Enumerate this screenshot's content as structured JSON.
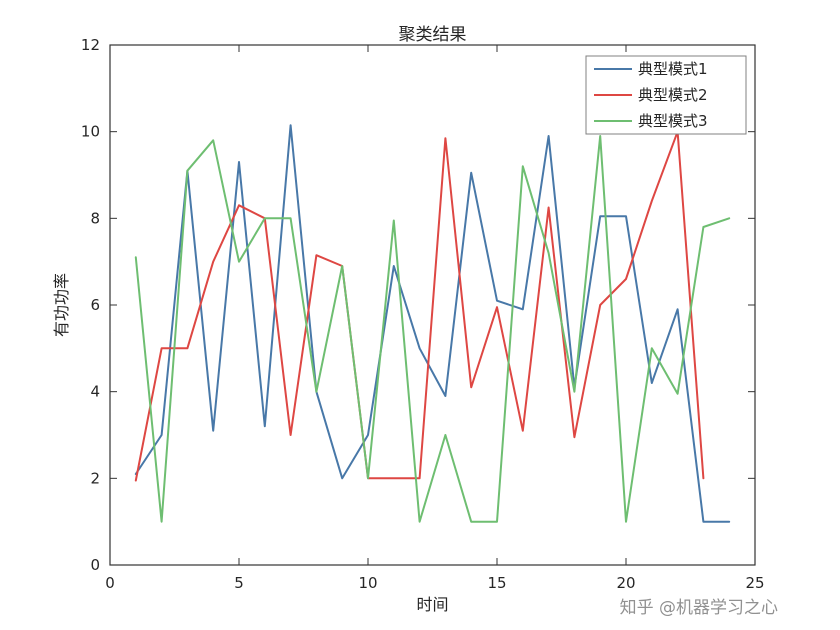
{
  "chart_data": {
    "type": "line",
    "title": "聚类结果",
    "xlabel": "时间",
    "ylabel": "有功功率",
    "xlim": [
      0,
      25
    ],
    "ylim": [
      0,
      12
    ],
    "xticks": [
      0,
      5,
      10,
      15,
      20,
      25
    ],
    "yticks": [
      0,
      2,
      4,
      6,
      8,
      10,
      12
    ],
    "grid": false,
    "legend_position": "top-right",
    "series": [
      {
        "name": "典型模式1",
        "color": "#4878A8",
        "x": [
          1,
          2,
          3,
          4,
          5,
          6,
          7,
          8,
          9,
          10,
          11,
          12,
          13,
          14,
          15,
          16,
          17,
          18,
          19,
          20,
          21,
          22,
          23,
          24
        ],
        "y": [
          2.1,
          3.0,
          9.1,
          3.1,
          9.3,
          3.2,
          10.15,
          4.0,
          2.0,
          3.0,
          6.9,
          5.0,
          3.9,
          9.05,
          6.1,
          5.9,
          9.9,
          4.1,
          8.05,
          8.05,
          4.2,
          5.9,
          1.0,
          1.0
        ]
      },
      {
        "name": "典型模式2",
        "color": "#DE4743",
        "x": [
          1,
          2,
          3,
          4,
          5,
          6,
          7,
          8,
          9,
          10,
          11,
          12,
          13,
          14,
          15,
          16,
          17,
          18,
          19,
          20,
          21,
          22,
          23
        ],
        "y": [
          1.95,
          5.0,
          5.0,
          7.0,
          8.3,
          8.0,
          3.0,
          7.15,
          6.9,
          2.0,
          2.0,
          2.0,
          9.85,
          4.1,
          5.95,
          3.1,
          8.25,
          2.95,
          6.0,
          6.6,
          8.4,
          10.0,
          2.0
        ]
      },
      {
        "name": "典型模式3",
        "color": "#6EBE71",
        "x": [
          1,
          2,
          3,
          4,
          5,
          6,
          7,
          8,
          9,
          10,
          11,
          12,
          13,
          14,
          15,
          16,
          17,
          18,
          19,
          20,
          21,
          22,
          23,
          24
        ],
        "y": [
          7.1,
          1.0,
          9.1,
          9.8,
          7.0,
          8.0,
          8.0,
          4.0,
          6.9,
          2.0,
          7.95,
          1.0,
          3.0,
          1.0,
          1.0,
          9.2,
          7.2,
          4.0,
          9.9,
          1.0,
          5.0,
          3.95,
          7.8,
          8.0
        ]
      }
    ]
  },
  "watermark": {
    "text": "知乎 @机器学习之心"
  },
  "colors": {
    "axis": "#333333",
    "text": "#262626",
    "watermark": "#919191",
    "legend_border": "#808080",
    "background": "#ffffff"
  }
}
